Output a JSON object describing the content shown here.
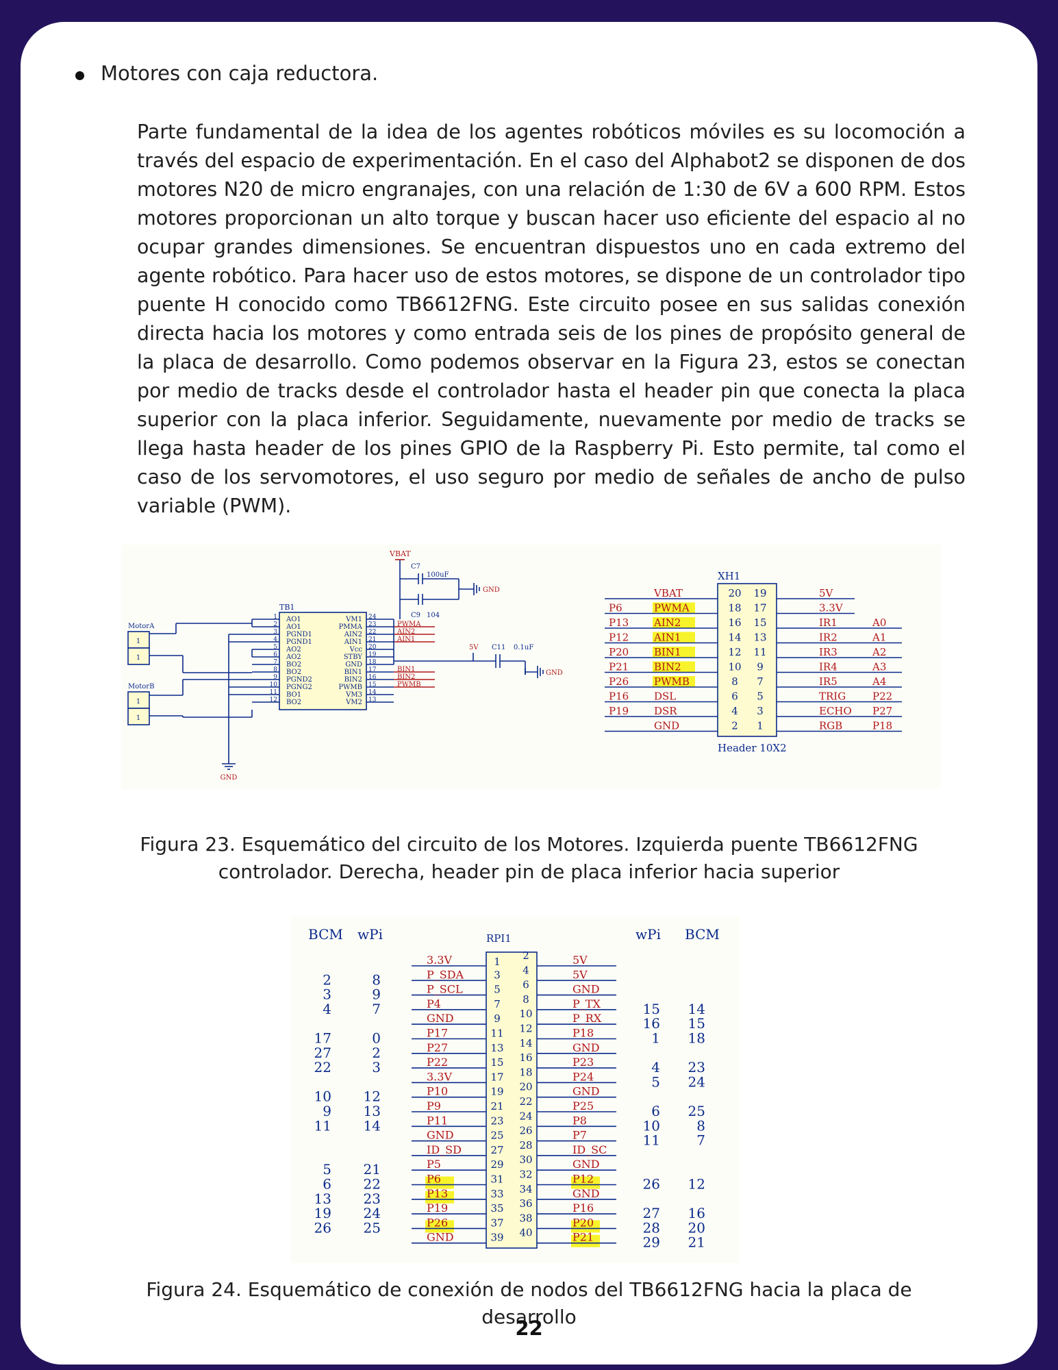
{
  "bullet": "Motores con caja reductora.",
  "paragraph": "Parte fundamental de la idea de los agentes robóticos móviles es su locomoción a través del espacio de experimentación. En el caso del Alphabot2 se disponen de dos motores N20 de micro engranajes, con una relación de 1:30 de 6V a 600 RPM. Estos motores proporcionan un alto torque y buscan hacer uso eficiente del espacio al no ocupar grandes dimensiones. Se encuentran dispuestos uno en cada extremo del agente robótico. Para hacer uso de estos motores, se dispone de un controlador tipo puente H conocido como TB6612FNG. Este circuito posee en sus salidas conexión directa hacia los motores y como entrada seis de los pines de propósito general de la placa de desarrollo. Como podemos observar en la Figura 23, estos se conectan por medio de tracks desde el controlador hasta el header pin que conecta la placa superior con la placa inferior. Seguidamente, nuevamente por medio de tracks se llega hasta header de los pines GPIO de la Raspberry Pi. Esto permite, tal como el caso de los servomotores, el uso seguro por medio de señales de ancho de pulso variable (PWM).",
  "fig23": {
    "caption_line1": "Figura 23. Esquemático del circuito de los Motores. Izquierda puente TB6612FNG",
    "caption_line2": "controlador. Derecha, header pin de placa inferior hacia superior",
    "vbat": "VBAT",
    "c7": "C7",
    "c7_val": "100uF",
    "c9": "C9",
    "c9_val": "104",
    "c11": "C11",
    "c11_val": "0.1uF",
    "v5": "5V",
    "gnd": "GND",
    "tb1": "TB1",
    "motor_a": "MotorA",
    "motor_b": "MotorB",
    "one": "1",
    "tb_left_names": [
      "AO1",
      "AO1",
      "PGND1",
      "PGND1",
      "AO2",
      "AO2",
      "BO2",
      "BO2",
      "PGND2",
      "PGNG2",
      "BO1",
      "BO2"
    ],
    "tb_right_names": [
      "VM1",
      "PMMA",
      "AIN2",
      "AIN1",
      "Vcc",
      "STBY",
      "GND",
      "BIN1",
      "BIN2",
      "PWMB",
      "VM3",
      "VM2"
    ],
    "tb_left_nums": [
      "1",
      "2",
      "3",
      "4",
      "5",
      "6",
      "7",
      "8",
      "9",
      "10",
      "11",
      "12"
    ],
    "tb_right_nums": [
      "24",
      "23",
      "22",
      "21",
      "20",
      "19",
      "18",
      "17",
      "16",
      "15",
      "14",
      "13"
    ],
    "tb_nets": [
      "",
      "PWMA",
      "AIN2",
      "AIN1",
      "",
      "",
      "",
      "BIN1",
      "BIN2",
      "PWMB",
      "",
      ""
    ],
    "xh1": "XH1",
    "header_label": "Header 10X2",
    "hdr_left_ext": [
      "",
      "P6",
      "P13",
      "P12",
      "P20",
      "P21",
      "P26",
      "P16",
      "P19",
      ""
    ],
    "hdr_left_sig": [
      "VBAT",
      "PWMA",
      "AIN2",
      "AIN1",
      "BIN1",
      "BIN2",
      "PWMB",
      "DSL",
      "DSR",
      "GND"
    ],
    "hdr_left_num": [
      "20",
      "18",
      "16",
      "14",
      "12",
      "10",
      "8",
      "6",
      "4",
      "2"
    ],
    "hdr_right_num": [
      "19",
      "17",
      "15",
      "13",
      "11",
      "9",
      "7",
      "5",
      "3",
      "1"
    ],
    "hdr_right_sig": [
      "5V",
      "3.3V",
      "IR1",
      "IR2",
      "IR3",
      "IR4",
      "IR5",
      "TRIG",
      "ECHO",
      "RGB"
    ],
    "hdr_right_ext": [
      "",
      "",
      "A0",
      "A1",
      "A2",
      "A3",
      "A4",
      "P22",
      "P27",
      "P18"
    ]
  },
  "fig24": {
    "caption": "Figura 24. Esquemático de conexión de nodos del TB6612FNG hacia la placa de desarrollo",
    "rpi": "RPI1",
    "bcm": "BCM",
    "wpi": "wPi",
    "left_bcm": [
      "",
      "2",
      "3",
      "4",
      "",
      "17",
      "27",
      "22",
      "",
      "10",
      "9",
      "11",
      "",
      "",
      "5",
      "6",
      "13",
      "19",
      "26",
      ""
    ],
    "left_wpi": [
      "",
      "8",
      "9",
      "7",
      "",
      "0",
      "2",
      "3",
      "",
      "12",
      "13",
      "14",
      "",
      "",
      "21",
      "22",
      "23",
      "24",
      "25",
      ""
    ],
    "left_sig": [
      "3.3V",
      "P_SDA",
      "P_SCL",
      "P4",
      "GND",
      "P17",
      "P27",
      "P22",
      "3.3V",
      "P10",
      "P9",
      "P11",
      "GND",
      "ID_SD",
      "P5",
      "P6",
      "P13",
      "P19",
      "P26",
      "GND"
    ],
    "left_pin": [
      "1",
      "3",
      "5",
      "7",
      "9",
      "11",
      "13",
      "15",
      "17",
      "19",
      "21",
      "23",
      "25",
      "27",
      "29",
      "31",
      "33",
      "35",
      "37",
      "39"
    ],
    "right_pin": [
      "2",
      "4",
      "6",
      "8",
      "10",
      "12",
      "14",
      "16",
      "18",
      "20",
      "22",
      "24",
      "26",
      "28",
      "30",
      "32",
      "34",
      "36",
      "38",
      "40"
    ],
    "right_sig": [
      "5V",
      "5V",
      "GND",
      "P_TX",
      "P_RX",
      "P18",
      "GND",
      "P23",
      "P24",
      "GND",
      "P25",
      "P8",
      "P7",
      "ID_SC",
      "GND",
      "P12",
      "GND",
      "P16",
      "P20",
      "P21"
    ],
    "right_wpi": [
      "",
      "",
      "",
      "15",
      "16",
      "1",
      "",
      "4",
      "5",
      "",
      "6",
      "10",
      "11",
      "",
      "",
      "26",
      "",
      "27",
      "28",
      "29"
    ],
    "right_bcm": [
      "",
      "",
      "",
      "14",
      "15",
      "18",
      "",
      "23",
      "24",
      "",
      "25",
      "8",
      "7",
      "",
      "",
      "12",
      "",
      "16",
      "20",
      "21"
    ]
  },
  "page_number": "22"
}
